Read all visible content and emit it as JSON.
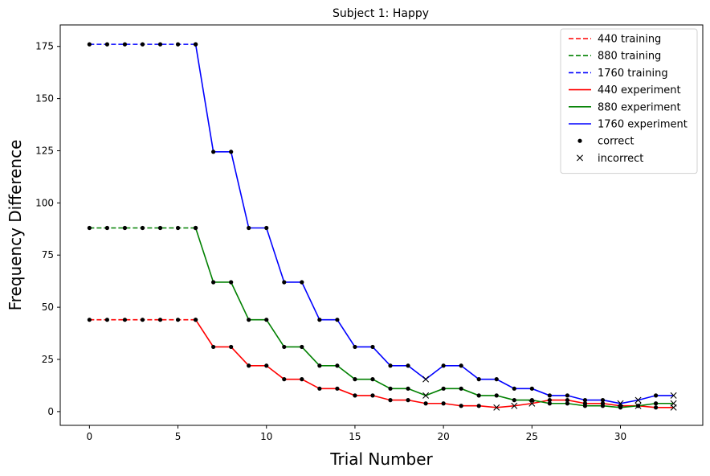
{
  "chart_data": {
    "type": "line",
    "title": "Subject 1: Happy",
    "xlabel": "Trial Number",
    "ylabel": "Frequency Difference",
    "xlim": [
      -1.65,
      34.65
    ],
    "ylim": [
      -6.6,
      185.3
    ],
    "xticks": [
      0,
      5,
      10,
      15,
      20,
      25,
      30
    ],
    "yticks": [
      0,
      25,
      50,
      75,
      100,
      125,
      150,
      175
    ],
    "grid": false,
    "legend_placement": "top-right",
    "colors": {
      "440": "#ff0000",
      "880": "#008000",
      "1760": "#0000ff",
      "marker": "#000000"
    },
    "series": [
      {
        "name": "440 training",
        "line": "dashed",
        "color": "#ff0000",
        "x": [
          0,
          1,
          2,
          3,
          4,
          5,
          6
        ],
        "y": [
          44,
          44,
          44,
          44,
          44,
          44,
          44
        ]
      },
      {
        "name": "880 training",
        "line": "dashed",
        "color": "#008000",
        "x": [
          0,
          1,
          2,
          3,
          4,
          5,
          6
        ],
        "y": [
          88,
          88,
          88,
          88,
          88,
          88,
          88
        ]
      },
      {
        "name": "1760 training",
        "line": "dashed",
        "color": "#0000ff",
        "x": [
          0,
          1,
          2,
          3,
          4,
          5,
          6
        ],
        "y": [
          176,
          176,
          176,
          176,
          176,
          176,
          176
        ]
      },
      {
        "name": "440 experiment",
        "line": "solid",
        "color": "#ff0000",
        "x": [
          6,
          7,
          8,
          9,
          10,
          11,
          12,
          13,
          14,
          15,
          16,
          17,
          18,
          19,
          20,
          21,
          22,
          23,
          24,
          25,
          26,
          27,
          28,
          29,
          30,
          31,
          32,
          33
        ],
        "y": [
          44,
          31,
          31,
          22,
          22,
          15.5,
          15.5,
          11,
          11,
          7.7,
          7.7,
          5.5,
          5.5,
          3.9,
          3.9,
          2.75,
          2.75,
          1.95,
          2.75,
          3.9,
          5.5,
          5.5,
          3.9,
          3.9,
          2.75,
          2.75,
          1.95,
          1.95
        ],
        "correct": [
          1,
          1,
          1,
          1,
          1,
          1,
          1,
          1,
          1,
          1,
          1,
          1,
          1,
          1,
          1,
          1,
          1,
          0,
          0,
          0,
          1,
          1,
          1,
          1,
          1,
          0,
          1,
          0
        ]
      },
      {
        "name": "880 experiment",
        "line": "solid",
        "color": "#008000",
        "x": [
          6,
          7,
          8,
          9,
          10,
          11,
          12,
          13,
          14,
          15,
          16,
          17,
          18,
          19,
          20,
          21,
          22,
          23,
          24,
          25,
          26,
          27,
          28,
          29,
          30,
          31,
          32,
          33
        ],
        "y": [
          88,
          62,
          62,
          44,
          44,
          31,
          31,
          22,
          22,
          15.5,
          15.5,
          11,
          11,
          7.7,
          11,
          11,
          7.7,
          7.7,
          5.5,
          5.5,
          3.9,
          3.9,
          2.75,
          2.75,
          1.95,
          2.75,
          3.9,
          3.9
        ],
        "correct": [
          1,
          1,
          1,
          1,
          1,
          1,
          1,
          1,
          1,
          1,
          1,
          1,
          1,
          0,
          1,
          1,
          1,
          1,
          1,
          1,
          1,
          1,
          1,
          1,
          1,
          1,
          1,
          0
        ]
      },
      {
        "name": "1760 experiment",
        "line": "solid",
        "color": "#0000ff",
        "x": [
          6,
          7,
          8,
          9,
          10,
          11,
          12,
          13,
          14,
          15,
          16,
          17,
          18,
          19,
          20,
          21,
          22,
          23,
          24,
          25,
          26,
          27,
          28,
          29,
          30,
          31,
          32,
          33
        ],
        "y": [
          176,
          124.5,
          124.5,
          88,
          88,
          62,
          62,
          44,
          44,
          31,
          31,
          22,
          22,
          15.5,
          22,
          22,
          15.5,
          15.5,
          11,
          11,
          7.7,
          7.7,
          5.5,
          5.5,
          3.9,
          5.5,
          7.7,
          7.7
        ],
        "correct": [
          1,
          1,
          1,
          1,
          1,
          1,
          1,
          1,
          1,
          1,
          1,
          1,
          1,
          0,
          1,
          1,
          1,
          1,
          1,
          1,
          1,
          1,
          1,
          1,
          0,
          0,
          1,
          0
        ]
      }
    ],
    "legend_entries": [
      {
        "label": "440 training",
        "kind": "dashed",
        "color": "#ff0000"
      },
      {
        "label": "880 training",
        "kind": "dashed",
        "color": "#008000"
      },
      {
        "label": "1760 training",
        "kind": "dashed",
        "color": "#0000ff"
      },
      {
        "label": "440 experiment",
        "kind": "solid",
        "color": "#ff0000"
      },
      {
        "label": "880 experiment",
        "kind": "solid",
        "color": "#008000"
      },
      {
        "label": "1760 experiment",
        "kind": "solid",
        "color": "#0000ff"
      },
      {
        "label": "correct",
        "kind": "dot",
        "color": "#000000"
      },
      {
        "label": "incorrect",
        "kind": "x",
        "color": "#000000"
      }
    ]
  }
}
